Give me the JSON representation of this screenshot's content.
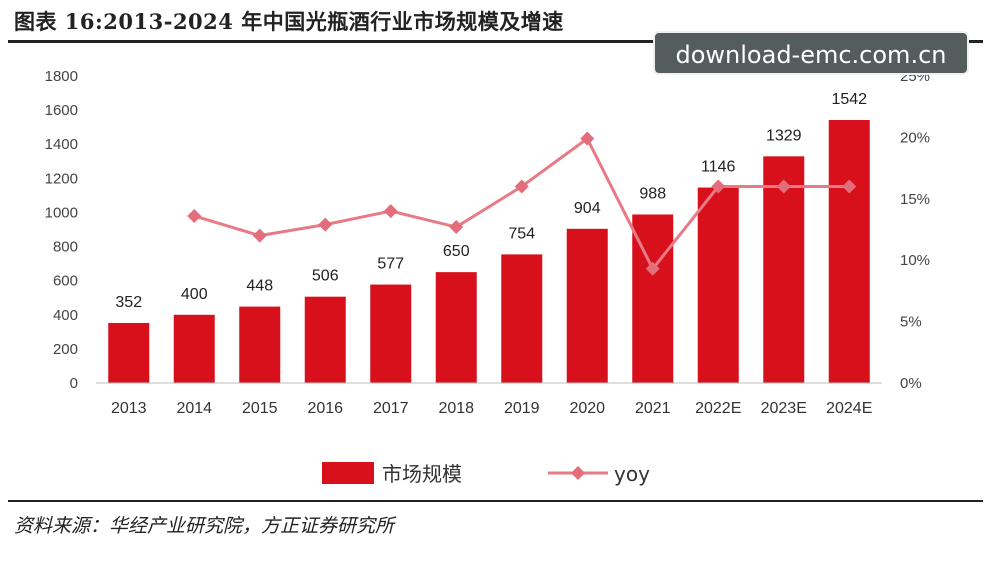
{
  "title": "图表 16:2013-2024 年中国光瓶酒行业市场规模及增速",
  "source": "资料来源：华经产业研究院，方正证券研究所",
  "watermark": "download-emc.com.cn",
  "colors": {
    "bar": "#d7101c",
    "line": "#e87a85",
    "marker": "#e36d7a"
  },
  "chart_data": {
    "type": "bar",
    "categories": [
      "2013",
      "2014",
      "2015",
      "2016",
      "2017",
      "2018",
      "2019",
      "2020",
      "2021",
      "2022E",
      "2023E",
      "2024E"
    ],
    "series": [
      {
        "name": "市场规模",
        "type": "bar",
        "axis": "left",
        "values": [
          352,
          400,
          448,
          506,
          577,
          650,
          754,
          904,
          988,
          1146,
          1329,
          1542
        ]
      },
      {
        "name": "yoy",
        "type": "line",
        "axis": "right",
        "values": [
          null,
          13.6,
          12.0,
          12.9,
          14.0,
          12.7,
          16.0,
          19.9,
          9.3,
          16.0,
          16.0,
          16.0
        ]
      }
    ],
    "ylim": [
      0,
      1800
    ],
    "yticks": [
      "0",
      "200",
      "400",
      "600",
      "800",
      "1000",
      "1200",
      "1400",
      "1600",
      "1800"
    ],
    "y2lim": [
      0,
      25
    ],
    "y2ticks": [
      "0%",
      "5%",
      "10%",
      "15%",
      "20%",
      "25%"
    ],
    "legend_position": "bottom",
    "grid": false
  }
}
